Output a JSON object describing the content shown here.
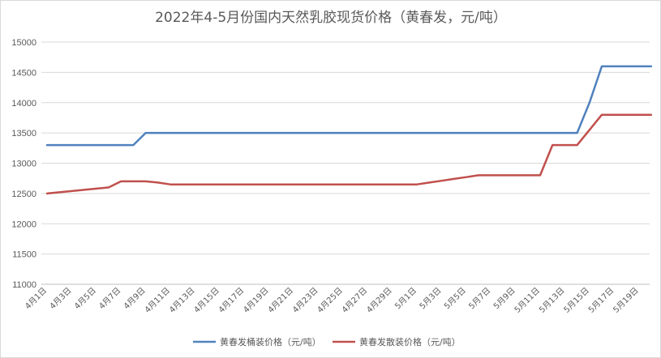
{
  "chart_data": {
    "type": "line",
    "title": "2022年4-5月份国内天然乳胶现货价格（黄春发，元/吨）",
    "xlabel": "",
    "ylabel": "",
    "ylim": [
      11000,
      15000
    ],
    "yticks": [
      11000,
      11500,
      12000,
      12500,
      13000,
      13500,
      14000,
      14500,
      15000
    ],
    "x_tick_labels": [
      "4月1日",
      "4月3日",
      "4月5日",
      "4月7日",
      "4月9日",
      "4月11日",
      "4月13日",
      "4月15日",
      "4月17日",
      "4月19日",
      "4月21日",
      "4月23日",
      "4月25日",
      "4月27日",
      "4月29日",
      "5月1日",
      "5月3日",
      "5月5日",
      "5月7日",
      "5月9日",
      "5月11日",
      "5月13日",
      "5月15日",
      "5月17日",
      "5月19日"
    ],
    "x": [
      "4月1日",
      "4月2日",
      "4月3日",
      "4月4日",
      "4月5日",
      "4月6日",
      "4月7日",
      "4月8日",
      "4月9日",
      "4月10日",
      "4月11日",
      "4月12日",
      "4月13日",
      "4月14日",
      "4月15日",
      "4月16日",
      "4月17日",
      "4月18日",
      "4月19日",
      "4月20日",
      "4月21日",
      "4月22日",
      "4月23日",
      "4月24日",
      "4月25日",
      "4月26日",
      "4月27日",
      "4月28日",
      "4月29日",
      "4月30日",
      "5月1日",
      "5月2日",
      "5月3日",
      "5月4日",
      "5月5日",
      "5月6日",
      "5月7日",
      "5月8日",
      "5月9日",
      "5月10日",
      "5月11日",
      "5月12日",
      "5月13日",
      "5月14日",
      "5月15日",
      "5月16日",
      "5月17日",
      "5月18日",
      "5月19日",
      "5月20日"
    ],
    "series": [
      {
        "name": "黄春发桶装价格（元/吨）",
        "color": "#4f81bd",
        "values": [
          13300,
          13300,
          13300,
          13300,
          13300,
          13300,
          13300,
          13300,
          13500,
          13500,
          13500,
          13500,
          13500,
          13500,
          13500,
          13500,
          13500,
          13500,
          13500,
          13500,
          13500,
          13500,
          13500,
          13500,
          13500,
          13500,
          13500,
          13500,
          13500,
          13500,
          13500,
          13500,
          13500,
          13500,
          13500,
          13500,
          13500,
          13500,
          13500,
          13500,
          13500,
          13500,
          13500,
          13500,
          14000,
          14600,
          14600,
          14600,
          14600,
          14600
        ]
      },
      {
        "name": "黄春发散装价格（元/吨）",
        "color": "#c0504d",
        "values": [
          12500,
          12520,
          12540,
          12560,
          12580,
          12600,
          12700,
          12700,
          12700,
          12680,
          12650,
          12650,
          12650,
          12650,
          12650,
          12650,
          12650,
          12650,
          12650,
          12650,
          12650,
          12650,
          12650,
          12650,
          12650,
          12650,
          12650,
          12650,
          12650,
          12650,
          12650,
          12680,
          12710,
          12740,
          12770,
          12800,
          12800,
          12800,
          12800,
          12800,
          12800,
          13300,
          13300,
          13300,
          13550,
          13800,
          13800,
          13800,
          13800,
          13800
        ]
      }
    ],
    "grid": true,
    "legend_position": "bottom"
  }
}
